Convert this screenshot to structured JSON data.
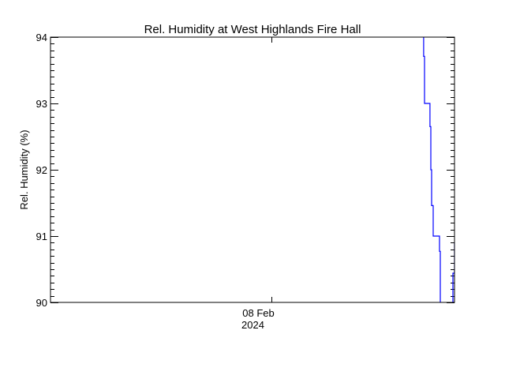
{
  "chart_data": {
    "type": "line",
    "title": "Rel. Humidity at West Highlands Fire Hall",
    "xlabel": "",
    "ylabel": "Rel. Humidity (%)",
    "xlim": [
      "2024-02-06T21:45",
      "2024-02-08T21:45"
    ],
    "ylim": [
      90,
      94
    ],
    "yticks": [
      90,
      91,
      92,
      93,
      94
    ],
    "ytick_labels": [
      "90",
      "91",
      "92",
      "93",
      "94"
    ],
    "y_minor_step": 0.1,
    "xticks": [
      {
        "value": "2024-02-08T00:00",
        "label_line1": "08 Feb",
        "label_line2": "2024"
      }
    ],
    "grid": false,
    "line_color": "#0000ff",
    "axis_color": "#000000",
    "series": [
      {
        "segments": [
          [
            [
              "2024-02-08T18:05",
              94.3
            ],
            [
              "2024-02-08T18:05",
              93.71
            ],
            [
              "2024-02-08T18:11",
              93.71
            ],
            [
              "2024-02-08T18:11",
              93.0
            ],
            [
              "2024-02-08T18:50",
              93.0
            ],
            [
              "2024-02-08T18:50",
              92.65
            ],
            [
              "2024-02-08T18:56",
              92.65
            ],
            [
              "2024-02-08T18:56",
              92.0
            ],
            [
              "2024-02-08T19:02",
              92.0
            ],
            [
              "2024-02-08T19:02",
              91.46
            ],
            [
              "2024-02-08T19:13",
              91.46
            ],
            [
              "2024-02-08T19:13",
              91.0
            ],
            [
              "2024-02-08T19:58",
              91.0
            ],
            [
              "2024-02-08T19:58",
              90.77
            ],
            [
              "2024-02-08T20:04",
              90.77
            ],
            [
              "2024-02-08T20:04",
              89.5
            ]
          ],
          [
            [
              "2024-02-08T21:34",
              89.5
            ],
            [
              "2024-02-08T21:34",
              90.44
            ],
            [
              "2024-02-08T21:45",
              90.44
            ],
            [
              "2024-02-08T21:45",
              90.9
            ]
          ]
        ]
      }
    ]
  }
}
